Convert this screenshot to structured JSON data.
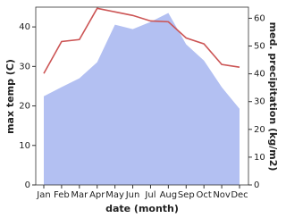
{
  "chart_data": {
    "type": "line",
    "x_label": "date (month)",
    "y_label": "max temp (C)",
    "y2_label": "med. precipitation (kg/m2)",
    "categories": [
      "Jan",
      "Feb",
      "Mar",
      "Apr",
      "May",
      "Jun",
      "Jul",
      "Aug",
      "Sep",
      "Oct",
      "Nov",
      "Dec"
    ],
    "ylim": [
      0,
      45
    ],
    "yticks": [
      0,
      10,
      20,
      30,
      40
    ],
    "y2lim": [
      0,
      64
    ],
    "y2ticks": [
      0,
      10,
      20,
      30,
      40,
      50,
      60
    ],
    "series": [
      {
        "name": "med. precipitation",
        "type": "area",
        "axis": "y2",
        "color": "#b3c0f2",
        "values": [
          31.9,
          35.2,
          38.4,
          44.2,
          57.7,
          56.1,
          58.7,
          61.9,
          50.6,
          44.8,
          35.2,
          27.4
        ]
      },
      {
        "name": "max temp",
        "type": "line",
        "axis": "y",
        "color": "#cc5555",
        "values": [
          28.2,
          36.3,
          36.8,
          44.7,
          43.8,
          42.9,
          41.5,
          41.3,
          37.2,
          35.7,
          30.5,
          29.8
        ]
      }
    ]
  }
}
